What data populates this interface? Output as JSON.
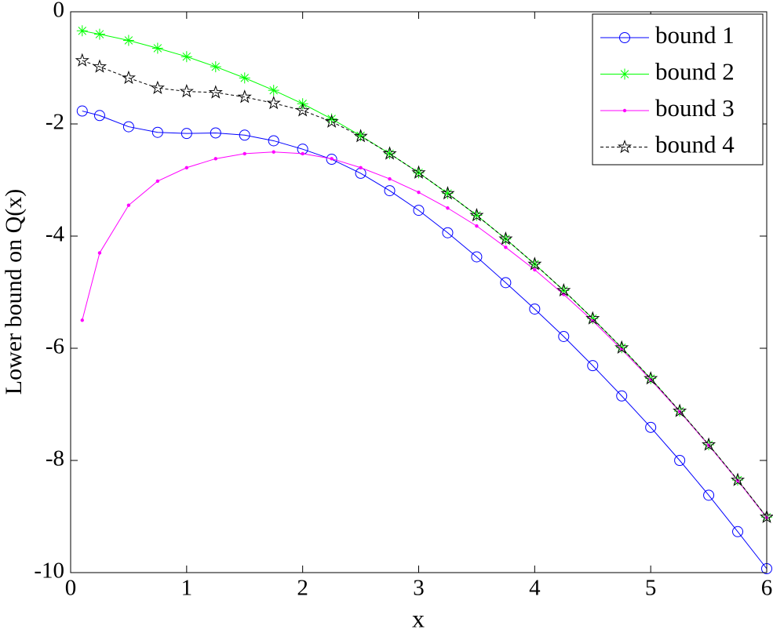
{
  "chart_data": {
    "type": "line",
    "xlabel": "x",
    "ylabel": "Lower bound on Q(x)",
    "x": [
      0.1,
      0.25,
      0.5,
      0.75,
      1.0,
      1.25,
      1.5,
      1.75,
      2.0,
      2.25,
      2.5,
      2.75,
      3.0,
      3.25,
      3.5,
      3.75,
      4.0,
      4.25,
      4.5,
      4.75,
      5.0,
      5.25,
      5.5,
      5.75,
      6.0
    ],
    "xlim": [
      0,
      6
    ],
    "xticks": [
      0,
      1,
      2,
      3,
      4,
      5,
      6
    ],
    "ylim": [
      -10,
      0
    ],
    "yticks": [
      -10,
      -8,
      -6,
      -4,
      -2,
      0
    ],
    "legend": "upper right",
    "series": [
      {
        "name": "bound 1",
        "color": "#0000ff",
        "marker": "circle",
        "dash": "solid",
        "values": [
          -1.77,
          -1.85,
          -2.05,
          -2.15,
          -2.17,
          -2.16,
          -2.2,
          -2.3,
          -2.45,
          -2.63,
          -2.88,
          -3.19,
          -3.54,
          -3.94,
          -4.37,
          -4.83,
          -5.3,
          -5.79,
          -6.31,
          -6.85,
          -7.41,
          -8.0,
          -8.62,
          -9.27,
          -9.93
        ]
      },
      {
        "name": "bound 2",
        "color": "#00ff00",
        "marker": "asterisk",
        "dash": "solid",
        "values": [
          -0.34,
          -0.4,
          -0.51,
          -0.65,
          -0.8,
          -0.98,
          -1.18,
          -1.4,
          -1.64,
          -1.91,
          -2.21,
          -2.53,
          -2.87,
          -3.24,
          -3.63,
          -4.05,
          -4.5,
          -4.97,
          -5.47,
          -5.99,
          -6.54,
          -7.12,
          -7.72,
          -8.35,
          -9.01
        ]
      },
      {
        "name": "bound 3",
        "color": "#ff00ff",
        "marker": "dot",
        "dash": "solid",
        "values": [
          -5.5,
          -4.3,
          -3.45,
          -3.02,
          -2.78,
          -2.62,
          -2.53,
          -2.5,
          -2.53,
          -2.62,
          -2.78,
          -2.98,
          -3.22,
          -3.5,
          -3.82,
          -4.2,
          -4.6,
          -5.04,
          -5.51,
          -6.02,
          -6.56,
          -7.13,
          -7.73,
          -8.36,
          -9.02
        ]
      },
      {
        "name": "bound 4",
        "color": "#000000",
        "marker": "star",
        "dash": "dashed",
        "values": [
          -0.87,
          -0.98,
          -1.18,
          -1.36,
          -1.42,
          -1.44,
          -1.52,
          -1.63,
          -1.76,
          -1.96,
          -2.22,
          -2.53,
          -2.87,
          -3.24,
          -3.63,
          -4.05,
          -4.5,
          -4.97,
          -5.47,
          -5.99,
          -6.54,
          -7.12,
          -7.72,
          -8.35,
          -9.01
        ]
      }
    ]
  }
}
